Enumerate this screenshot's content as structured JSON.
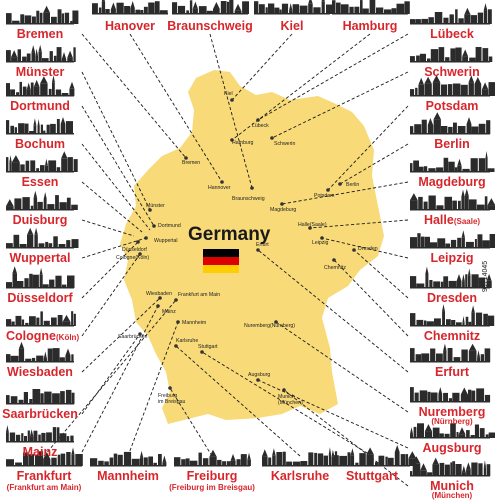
{
  "map": {
    "country": "Germany",
    "map_color": "#f8da78",
    "label_color": "#d7262c",
    "flag_colors": [
      "#000000",
      "#dd0000",
      "#ffce00"
    ]
  },
  "left_cities": [
    {
      "id": "bremen",
      "label": "Bremen"
    },
    {
      "id": "munster",
      "label": "Münster"
    },
    {
      "id": "dortmund",
      "label": "Dortmund"
    },
    {
      "id": "bochum",
      "label": "Bochum"
    },
    {
      "id": "essen",
      "label": "Essen"
    },
    {
      "id": "duisburg",
      "label": "Duisburg"
    },
    {
      "id": "wuppertal",
      "label": "Wuppertal"
    },
    {
      "id": "dusseldorf",
      "label": "Düsseldorf"
    },
    {
      "id": "cologne",
      "label": "Cologne",
      "sub": "(Köln)"
    },
    {
      "id": "wiesbaden",
      "label": "Wiesbaden"
    },
    {
      "id": "saarbrucken",
      "label": "Saarbrücken"
    },
    {
      "id": "mainz",
      "label": "Mainz"
    }
  ],
  "right_cities": [
    {
      "id": "lubeck",
      "label": "Lübeck"
    },
    {
      "id": "schwerin",
      "label": "Schwerin"
    },
    {
      "id": "potsdam",
      "label": "Potsdam"
    },
    {
      "id": "berlin",
      "label": "Berlin"
    },
    {
      "id": "magdeburg",
      "label": "Magdeburg"
    },
    {
      "id": "halle",
      "label": "Halle",
      "sub": "(Saale)"
    },
    {
      "id": "leipzig",
      "label": "Leipzig"
    },
    {
      "id": "dresden",
      "label": "Dresden"
    },
    {
      "id": "chemnitz",
      "label": "Chemnitz"
    },
    {
      "id": "erfurt",
      "label": "Erfurt"
    },
    {
      "id": "nuremberg",
      "label": "Nuremberg",
      "sub": "(Nürnberg)"
    },
    {
      "id": "augsburg",
      "label": "Augsburg"
    },
    {
      "id": "munich",
      "label": "Munich",
      "sub": "(München)"
    }
  ],
  "top_cities": [
    {
      "id": "hanover",
      "label": "Hanover"
    },
    {
      "id": "braunschweig",
      "label": "Braunschweig"
    },
    {
      "id": "kiel",
      "label": "Kiel"
    },
    {
      "id": "hamburg",
      "label": "Hamburg"
    }
  ],
  "bottom_cities": [
    {
      "id": "frankfurt",
      "label": "Frankfurt",
      "sub": "(Frankfurt am Main)"
    },
    {
      "id": "mannheim",
      "label": "Mannheim"
    },
    {
      "id": "freiburg",
      "label": "Freiburg",
      "sub": "(Freiburg im Breisgau)"
    },
    {
      "id": "karlsruhe",
      "label": "Karlsruhe"
    },
    {
      "id": "stuttgart",
      "label": "Stuttgart"
    }
  ],
  "map_labels": {
    "kiel": "Kiel",
    "lubeck": "Lübeck",
    "hamburg": "Hamburg",
    "schwerin": "Schwerin",
    "bremen": "Bremen",
    "hanover": "Hannover",
    "berlin": "Berlin",
    "potsdam": "Potsdam",
    "braunschweig": "Braunschweig",
    "magdeburg": "Magdeburg",
    "munster": "Münster",
    "dortmund": "Dortmund",
    "wuppertal": "Wuppertal",
    "dusseldorf": "Düsseldorf",
    "cologne": "Cologne(Köln)",
    "halle": "Halle(Saale)",
    "leipzig": "Leipzig",
    "dresden": "Dresden",
    "erfurt": "Erfurt",
    "chemnitz": "Chemnitz",
    "wiesbaden": "Wiesbaden",
    "frankfurt": "Frankfurt am Main",
    "mainz": "Mainz",
    "mannheim": "Mannheim",
    "saarbrucken": "Saarbrücken",
    "nuremberg": "Nuremberg(Nürnberg)",
    "karlsruhe": "Karlsruhe",
    "stuttgart": "Stuttgart",
    "augsburg": "Augsburg",
    "freiburg": "Freiburg\nim Breisgau",
    "munich": "Munich\n(München)"
  },
  "watermark": "99714045"
}
